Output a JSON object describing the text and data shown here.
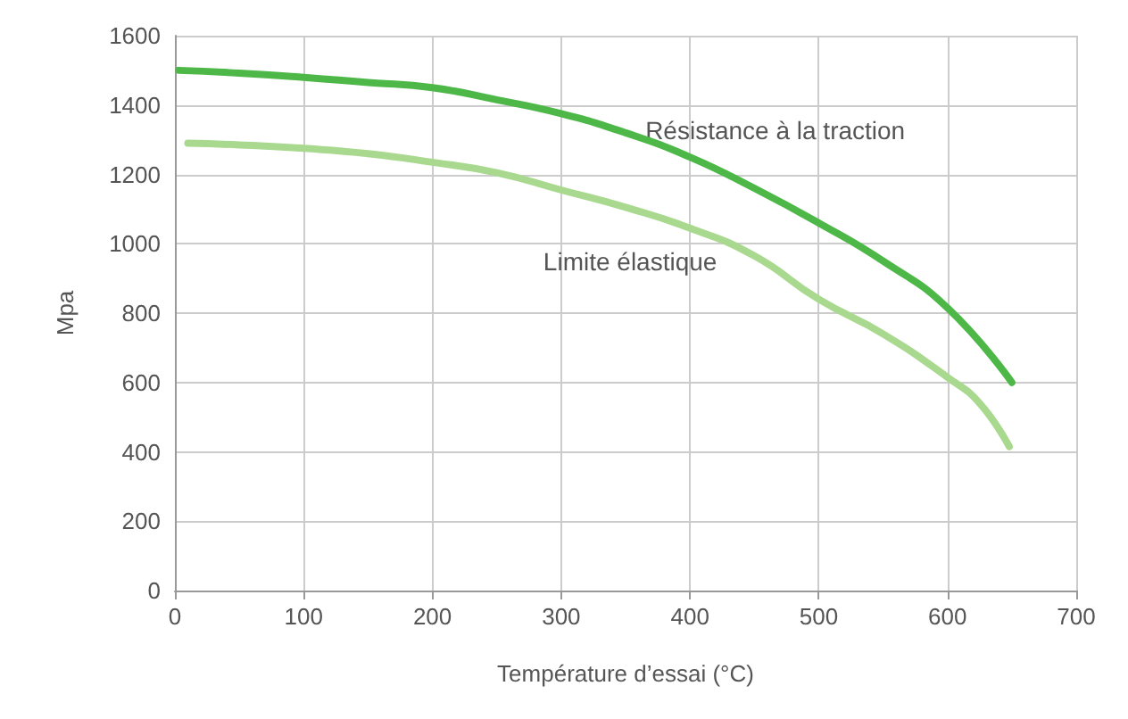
{
  "chart_data": {
    "type": "line",
    "xlabel": "Température d’essai (°C)",
    "ylabel": "Mpa",
    "series": [
      {
        "name": "Résistance à la traction",
        "color": "#4db848",
        "x": [
          3,
          50,
          100,
          150,
          200,
          250,
          300,
          350,
          400,
          450,
          500,
          550,
          600,
          650
        ],
        "values": [
          1500,
          1492,
          1480,
          1465,
          1450,
          1415,
          1375,
          1320,
          1250,
          1160,
          1060,
          950,
          815,
          600
        ]
      },
      {
        "name": "Limite élastique",
        "color": "#a9d98f",
        "x": [
          10,
          50,
          100,
          150,
          200,
          250,
          300,
          350,
          400,
          450,
          500,
          550,
          600,
          625,
          648
        ],
        "values": [
          1290,
          1285,
          1275,
          1260,
          1235,
          1205,
          1155,
          1105,
          1045,
          965,
          840,
          740,
          615,
          540,
          415
        ]
      }
    ],
    "xlim": [
      0,
      700
    ],
    "xticks": [
      0,
      100,
      200,
      300,
      400,
      500,
      600,
      700
    ],
    "ylim": [
      0,
      1600
    ],
    "yticks": [
      0,
      200,
      400,
      600,
      800,
      1000,
      1200,
      1400,
      1600
    ],
    "grid": true,
    "legend": false,
    "marker": "none",
    "line_style": "solid"
  }
}
